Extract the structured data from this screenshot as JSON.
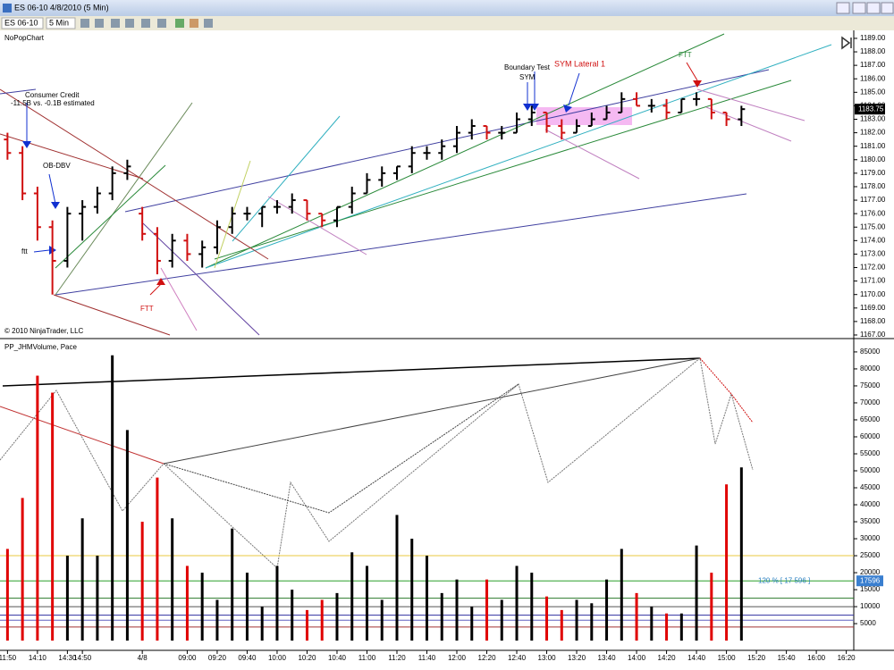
{
  "window": {
    "title": "ES 06-10  4/8/2010 (5 Min)",
    "instrument": "ES 06-10",
    "interval": "5 Min"
  },
  "chart_data": [
    {
      "type": "ohlc",
      "title": "NoPopChart",
      "copyright": "© 2010 NinjaTrader, LLC",
      "annotations": [
        "Consumer Credit",
        "-11.5B vs. -0.1B estimated",
        "OB-DBV",
        "ftt",
        "FTT",
        "Boundary Test",
        "SYM",
        "SYM Lateral 1",
        "FTT"
      ],
      "up_color": "#000000",
      "down_color": "#d01010",
      "open": [
        1181.5,
        1180.5,
        1177.5,
        1175,
        1172.5,
        1176,
        1176.5,
        1177.5,
        1179,
        1176,
        1174.5,
        1172.5,
        1174,
        1173,
        1173.5,
        1175,
        1176,
        1176,
        1176.5,
        1176.5,
        1177,
        1176,
        1175.5,
        1176.5,
        1177.5,
        1178.5,
        1179,
        1179.5,
        1180.5,
        1180.5,
        1181,
        1182,
        1182.5,
        1182,
        1182,
        1183,
        1183.5,
        1182.5,
        1182,
        1182.5,
        1183,
        1183.5,
        1184.5,
        1184,
        1184,
        1183.5,
        1184.5,
        1184.5,
        1183.5,
        1183,
        null,
        null,
        null,
        null,
        null,
        null,
        null
      ],
      "high": [
        1182,
        1181,
        1178,
        1175.5,
        1176.5,
        1177,
        1178,
        1179.5,
        1180,
        1176.5,
        1175,
        1174.5,
        1174.5,
        1174,
        1175.5,
        1176.5,
        1176.5,
        1176.5,
        1177,
        1177.5,
        1177,
        1176,
        1176.5,
        1178,
        1179,
        1179.5,
        1179.5,
        1181,
        1181,
        1181.5,
        1182.5,
        1183,
        1182.5,
        1182.5,
        1183.5,
        1184,
        1183.5,
        1183,
        1183,
        1183.5,
        1184,
        1185,
        1185,
        1184.5,
        1184.5,
        1184.5,
        1185,
        1184.5,
        1183.5,
        1184,
        null,
        null,
        null,
        null,
        null,
        null,
        null
      ],
      "low": [
        1180,
        1177,
        1174,
        1170,
        1172,
        1174,
        1176,
        1177,
        1178.5,
        1174,
        1171.5,
        1172,
        1172.5,
        1172,
        1173,
        1174.5,
        1175.5,
        1175,
        1176,
        1176,
        1175.5,
        1175,
        1175,
        1176,
        1177.5,
        1178,
        1178.5,
        1179,
        1180,
        1180,
        1180.5,
        1181.5,
        1181.5,
        1181.5,
        1182,
        1182.5,
        1182,
        1181.5,
        1182,
        1182.5,
        1183,
        1183.5,
        1184,
        1183.5,
        1183,
        1183.5,
        1184,
        1183,
        1182.5,
        1182.5,
        null,
        null,
        null,
        null,
        null,
        null,
        null
      ],
      "close": [
        1180.5,
        1177.5,
        1175,
        1172.5,
        1176,
        1176.5,
        1177.5,
        1179,
        1179.5,
        1174.5,
        1172.5,
        1174,
        1173,
        1173.5,
        1175,
        1176,
        1176,
        1176.5,
        1176.5,
        1177,
        1176,
        1175.5,
        1176.5,
        1177.5,
        1178.5,
        1179,
        1179.5,
        1180.5,
        1180.5,
        1181,
        1182,
        1182.5,
        1182,
        1182,
        1183,
        1183.5,
        1182.5,
        1182,
        1182.5,
        1183,
        1183.5,
        1184.5,
        1184,
        1184,
        1183.5,
        1184.5,
        1184.5,
        1183.5,
        1183,
        1183.75,
        null,
        null,
        null,
        null,
        null,
        null,
        null
      ],
      "last_price": 1183.75,
      "ylim": [
        1166.8,
        1189.46
      ],
      "yticks": [
        {
          "value": 1167,
          "label": "1167.00"
        },
        {
          "value": 1168,
          "label": "1168.00"
        },
        {
          "value": 1169,
          "label": "1169.00"
        },
        {
          "value": 1170,
          "label": "1170.00"
        },
        {
          "value": 1171,
          "label": "1171.00"
        },
        {
          "value": 1172,
          "label": "1172.00"
        },
        {
          "value": 1173,
          "label": "1173.00"
        },
        {
          "value": 1174,
          "label": "1174.00"
        },
        {
          "value": 1175,
          "label": "1175.00"
        },
        {
          "value": 1176,
          "label": "1176.00"
        },
        {
          "value": 1177,
          "label": "1177.00"
        },
        {
          "value": 1178,
          "label": "1178.00"
        },
        {
          "value": 1179,
          "label": "1179.00"
        },
        {
          "value": 1180,
          "label": "1180.00"
        },
        {
          "value": 1181,
          "label": "1181.00"
        },
        {
          "value": 1182,
          "label": "1182.00"
        },
        {
          "value": 1183,
          "label": "1183.00"
        },
        {
          "value": 1184,
          "label": "1184.00"
        },
        {
          "value": 1185,
          "label": "1185.00"
        },
        {
          "value": 1186,
          "label": "1186.00"
        },
        {
          "value": 1187,
          "label": "1187.00"
        },
        {
          "value": 1188,
          "label": "1188.00"
        },
        {
          "value": 1189,
          "label": "1189.00"
        }
      ],
      "grid": false
    },
    {
      "type": "bar",
      "title": "PP_JHMVolume, Pace",
      "categories": [
        "11:50",
        null,
        "14:10",
        null,
        "14:30",
        "14:50",
        null,
        null,
        null,
        "4/8",
        null,
        null,
        "09:00",
        null,
        "09:20",
        null,
        "09:40",
        null,
        "10:00",
        null,
        "10:20",
        null,
        "10:40",
        null,
        "11:00",
        null,
        "11:20",
        null,
        "11:40",
        null,
        "12:00",
        null,
        "12:20",
        null,
        "12:40",
        null,
        "13:00",
        null,
        "13:20",
        null,
        "13:40",
        null,
        "14:00",
        null,
        "14:20",
        null,
        "14:40",
        null,
        "15:00",
        null,
        "15:20",
        null,
        "15:40",
        null,
        "16:00",
        null,
        "16:20"
      ],
      "values": [
        27000,
        42000,
        78000,
        73000,
        25000,
        36000,
        25000,
        84000,
        62000,
        35000,
        48000,
        36000,
        22000,
        20000,
        12000,
        33000,
        20000,
        10000,
        22000,
        15000,
        9000,
        12000,
        14000,
        26000,
        22000,
        12000,
        37000,
        30000,
        25000,
        14000,
        18000,
        10000,
        18000,
        12000,
        22000,
        20000,
        13000,
        9000,
        12000,
        11000,
        18000,
        27000,
        14000,
        10000,
        8000,
        8000,
        28000,
        20000,
        46000,
        51000,
        null,
        null,
        null,
        null,
        null,
        null,
        null
      ],
      "color": "#000000",
      "down_color": "#e00000",
      "pace_label": "120 % [ 17 596 ]",
      "pace_value": 17596,
      "pace_color": "#2aa02a",
      "levels": [
        {
          "value": 25000,
          "color": "#e8c840"
        },
        {
          "value": 12500,
          "color": "#2a7a2a"
        },
        {
          "value": 10000,
          "color": "#555555"
        },
        {
          "value": 7500,
          "color": "#3030a0"
        },
        {
          "value": 6000,
          "color": "#6060c0"
        },
        {
          "value": 4000,
          "color": "#a03030"
        }
      ],
      "ylim": [
        -2600,
        88400
      ],
      "yticks": [
        5000,
        10000,
        15000,
        20000,
        25000,
        30000,
        35000,
        40000,
        45000,
        50000,
        55000,
        60000,
        65000,
        70000,
        75000,
        80000,
        85000
      ],
      "grid": false
    }
  ]
}
